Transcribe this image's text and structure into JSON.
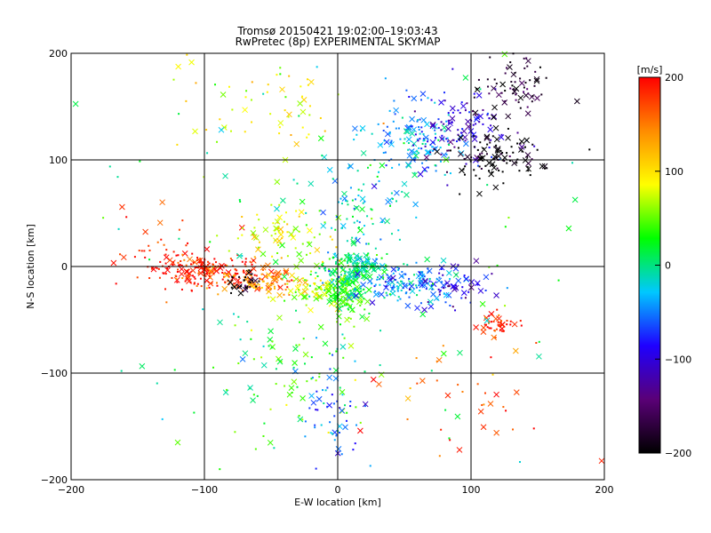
{
  "chart_data": {
    "type": "scatter",
    "title": "Tromsø 20150421 19:02:00–19:03:43",
    "subtitle": "RwPretec (8p) EXPERIMENTAL SKYMAP",
    "xlabel": "E-W location [km]",
    "ylabel": "N-S location [km]",
    "xlim": [
      -200,
      200
    ],
    "ylim": [
      -200,
      200
    ],
    "xticks": [
      -200,
      -100,
      0,
      100,
      200
    ],
    "yticks": [
      -200,
      -100,
      0,
      100,
      200
    ],
    "xtick_labels": [
      "−200",
      "−100",
      "0",
      "100",
      "200"
    ],
    "ytick_labels": [
      "−200",
      "−100",
      "0",
      "100",
      "200"
    ],
    "grid": true,
    "colorbar": {
      "label": "[m/s]",
      "range": [
        -200,
        200
      ],
      "ticks": [
        200,
        100,
        0,
        -100,
        -200
      ],
      "tick_labels": [
        "200",
        "100",
        "0",
        "−100",
        "−200"
      ],
      "colormap": [
        "#000000",
        "#5a0077",
        "#1f00ff",
        "#00c8ff",
        "#00ff00",
        "#ffff00",
        "#ff8c00",
        "#ff0000"
      ]
    },
    "markers": [
      "x",
      "dot"
    ],
    "clusters": [
      {
        "center": [
          -95,
          -5
        ],
        "spread": [
          35,
          12
        ],
        "value": 190,
        "count": 170
      },
      {
        "center": [
          -60,
          -15
        ],
        "spread": [
          25,
          10
        ],
        "value": 140,
        "count": 90
      },
      {
        "center": [
          -70,
          -15
        ],
        "spread": [
          10,
          8
        ],
        "value": -200,
        "count": 30
      },
      {
        "center": [
          -130,
          10
        ],
        "spread": [
          40,
          30
        ],
        "value": 185,
        "count": 60
      },
      {
        "center": [
          -20,
          -20
        ],
        "spread": [
          25,
          12
        ],
        "value": 80,
        "count": 60
      },
      {
        "center": [
          5,
          -25
        ],
        "spread": [
          15,
          20
        ],
        "value": 30,
        "count": 160
      },
      {
        "center": [
          15,
          0
        ],
        "spread": [
          20,
          12
        ],
        "value": 0,
        "count": 140
      },
      {
        "center": [
          50,
          -15
        ],
        "spread": [
          30,
          15
        ],
        "value": -45,
        "count": 120
      },
      {
        "center": [
          80,
          -20
        ],
        "spread": [
          30,
          20
        ],
        "value": -100,
        "count": 60
      },
      {
        "center": [
          60,
          120
        ],
        "spread": [
          30,
          30
        ],
        "value": -40,
        "count": 120
      },
      {
        "center": [
          90,
          130
        ],
        "spread": [
          35,
          35
        ],
        "value": -100,
        "count": 110
      },
      {
        "center": [
          120,
          100
        ],
        "spread": [
          30,
          20
        ],
        "value": -200,
        "count": 110
      },
      {
        "center": [
          130,
          170
        ],
        "spread": [
          25,
          25
        ],
        "value": -180,
        "count": 70
      },
      {
        "center": [
          -40,
          25
        ],
        "spread": [
          35,
          25
        ],
        "value": 80,
        "count": 80
      },
      {
        "center": [
          20,
          60
        ],
        "spread": [
          30,
          40
        ],
        "value": -20,
        "count": 90
      },
      {
        "center": [
          120,
          -55
        ],
        "spread": [
          12,
          10
        ],
        "value": 195,
        "count": 45
      },
      {
        "center": [
          -30,
          -100
        ],
        "spread": [
          45,
          50
        ],
        "value": 40,
        "count": 70
      },
      {
        "center": [
          0,
          -140
        ],
        "spread": [
          20,
          35
        ],
        "value": -60,
        "count": 50
      },
      {
        "center": [
          -60,
          150
        ],
        "spread": [
          70,
          40
        ],
        "value": 90,
        "count": 60
      },
      {
        "center": [
          100,
          -120
        ],
        "spread": [
          60,
          50
        ],
        "value": 170,
        "count": 40
      },
      {
        "center": [
          0,
          0
        ],
        "spread": [
          170,
          170
        ],
        "value": 0,
        "count": 140
      }
    ]
  }
}
